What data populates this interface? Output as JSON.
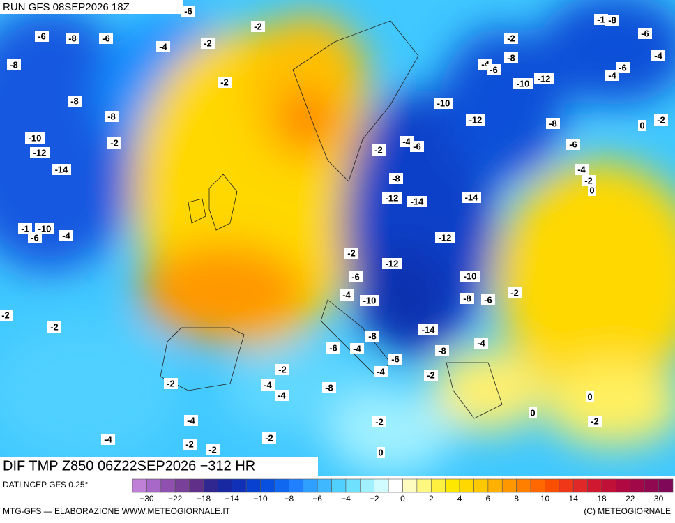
{
  "header": {
    "run": "RUN GFS 08SEP2026 18Z",
    "field": "DIF TMP Z850 06Z22SEP2026 −312 HR",
    "source": "DATI NCEP GFS 0.25°",
    "credit": "MTG-GFS — ELABORAZIONE WWW.METEOGIORNALE.IT",
    "copyright": "(C) METEOGIORNALE"
  },
  "map_labels": [
    "-6",
    "-2",
    "-6",
    "-8",
    "-6",
    "-4",
    "-2",
    "-8",
    "-2",
    "-8",
    "-8",
    "-2",
    "-10",
    "-12",
    "-14",
    "-1",
    "-10",
    "-6",
    "-4",
    "-2",
    "-2",
    "-2",
    "-4",
    "-4",
    "-2",
    "-2",
    "-2",
    "-2",
    "-4",
    "-4",
    "-8",
    "-6",
    "-4",
    "-8",
    "-6",
    "-4",
    "-2",
    "-2",
    "0",
    "-8",
    "-14",
    "-4",
    "-8",
    "-6",
    "-2",
    "-10",
    "-10",
    "-4",
    "-6",
    "-2",
    "-12",
    "-12",
    "-12",
    "-14",
    "-14",
    "-8",
    "-2",
    "-4",
    "-6",
    "-10",
    "-12",
    "-2",
    "-8",
    "-4",
    "-6",
    "-10",
    "-12",
    "-8",
    "-6",
    "-4",
    "-2",
    "0",
    "-1",
    "-8",
    "-6",
    "-4",
    "-4",
    "-6",
    "0",
    "-2",
    "0",
    "0",
    "-2"
  ],
  "colorbar": {
    "labels": [
      "−30",
      "−22",
      "−18",
      "−14",
      "−10",
      "−8",
      "−6",
      "−4",
      "−2",
      "0",
      "2",
      "4",
      "6",
      "8",
      "10",
      "14",
      "18",
      "22",
      "30"
    ],
    "colors": [
      "#c080d8",
      "#a868c8",
      "#9050b0",
      "#784098",
      "#603088",
      "#302890",
      "#1828a0",
      "#1030b8",
      "#0840d0",
      "#0850e0",
      "#1068f0",
      "#2080ff",
      "#30a0ff",
      "#40b8ff",
      "#50d0ff",
      "#70e0ff",
      "#a0f0ff",
      "#d0fcff",
      "#ffffff",
      "#fffcc0",
      "#fff880",
      "#fff040",
      "#ffe800",
      "#ffd800",
      "#ffc800",
      "#ffb000",
      "#ff9800",
      "#ff8000",
      "#ff6800",
      "#f85000",
      "#f03818",
      "#e02828",
      "#d01830",
      "#c01038",
      "#b00840",
      "#a00848",
      "#900850",
      "#800858"
    ]
  }
}
